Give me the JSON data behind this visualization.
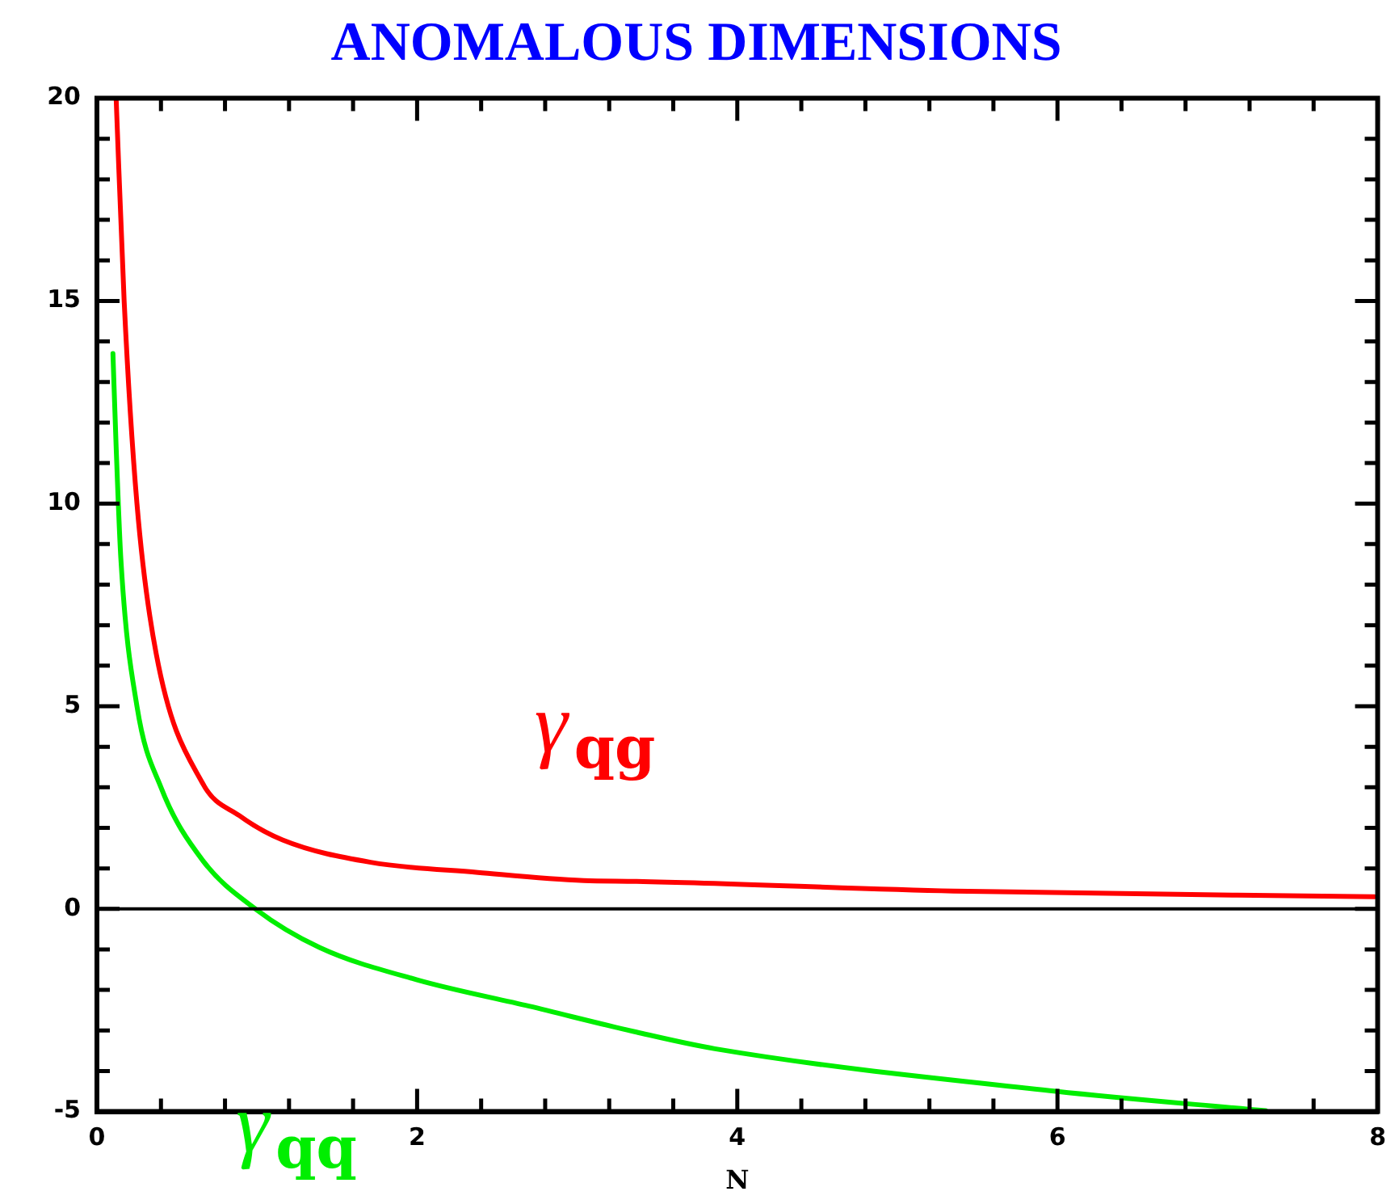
{
  "chart_data": {
    "type": "line",
    "title": "ANOMALOUS DIMENSIONS",
    "xlabel": "N",
    "xlim": [
      0,
      8
    ],
    "ylim": [
      -5,
      20
    ],
    "xticks": [
      0,
      {
        "value": 0.4,
        "label": null
      },
      {
        "value": 0.8,
        "label": null
      },
      {
        "value": 1.2,
        "label": null
      },
      {
        "value": 1.6,
        "label": null
      },
      2,
      {
        "value": 2.4,
        "label": null
      },
      {
        "value": 2.8,
        "label": null
      },
      {
        "value": 3.2,
        "label": null
      },
      {
        "value": 3.6,
        "label": null
      },
      4,
      {
        "value": 4.4,
        "label": null
      },
      {
        "value": 4.8,
        "label": null
      },
      {
        "value": 5.2,
        "label": null
      },
      {
        "value": 5.6,
        "label": null
      },
      6,
      {
        "value": 6.4,
        "label": null
      },
      {
        "value": 6.8,
        "label": null
      },
      {
        "value": 7.2,
        "label": null
      },
      {
        "value": 7.6,
        "label": null
      },
      8
    ],
    "yticks": [
      -5,
      {
        "value": -4,
        "label": null
      },
      {
        "value": -3,
        "label": null
      },
      {
        "value": -2,
        "label": null
      },
      {
        "value": -1,
        "label": null
      },
      0,
      {
        "value": 1,
        "label": null
      },
      {
        "value": 2,
        "label": null
      },
      {
        "value": 3,
        "label": null
      },
      {
        "value": 4,
        "label": null
      },
      5,
      {
        "value": 6,
        "label": null
      },
      {
        "value": 7,
        "label": null
      },
      {
        "value": 8,
        "label": null
      },
      {
        "value": 9,
        "label": null
      },
      10,
      {
        "value": 11,
        "label": null
      },
      {
        "value": 12,
        "label": null
      },
      {
        "value": 13,
        "label": null
      },
      {
        "value": 14,
        "label": null
      },
      15,
      {
        "value": 16,
        "label": null
      },
      {
        "value": 17,
        "label": null
      },
      {
        "value": 18,
        "label": null
      },
      {
        "value": 19,
        "label": null
      },
      20
    ],
    "grid": false,
    "legend": false,
    "marker": "none",
    "line_style": "solid",
    "ref_lines": [
      {
        "axis": "y",
        "value": 0,
        "color": "#000000"
      }
    ],
    "series": [
      {
        "name": "γ$_{qg}$",
        "color": "#ff0000",
        "x": [
          0.12,
          0.17,
          0.25,
          0.37,
          0.66,
          0.89,
          1.16,
          1.71,
          2.38,
          3.04,
          3.37,
          5.35,
          7.98
        ],
        "values": [
          20,
          15,
          10,
          6.3,
          3.1,
          2.3,
          1.7,
          1.15,
          0.9,
          0.7,
          0.68,
          0.44,
          0.3
        ]
      },
      {
        "name": "γ$_{qq}$",
        "color": "#00ee00",
        "x": [
          0.1,
          0.12,
          0.15,
          0.25,
          0.4,
          0.66,
          0.99,
          1.39,
          2,
          2.7,
          3.37,
          3.86,
          5.99,
          7.3
        ],
        "values": [
          13.7,
          11.4,
          8.6,
          5,
          3,
          1.2,
          0,
          -0.95,
          -1.75,
          -2.4,
          -3.04,
          -3.45,
          -4.5,
          -4.98
        ]
      }
    ]
  }
}
